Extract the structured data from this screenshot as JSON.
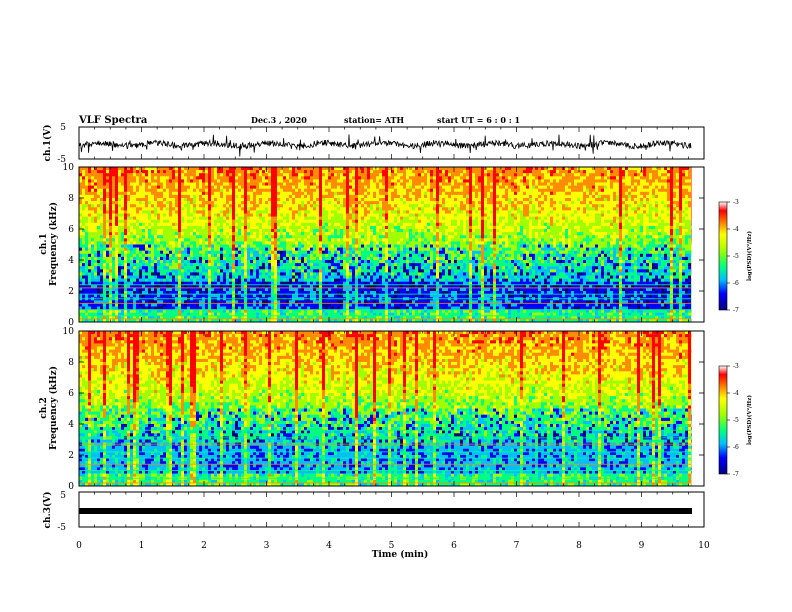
{
  "header": {
    "title": "VLF Spectra",
    "date": "Dec.3 , 2020",
    "station": "station= ATH",
    "start": "start UT = 6 : 0 : 1"
  },
  "chart_data": {
    "type": "heatmap",
    "x": {
      "label": "Time (min)",
      "range": [
        0,
        10
      ],
      "ticks": [
        "0",
        "1",
        "2",
        "3",
        "4",
        "5",
        "6",
        "7",
        "8",
        "9",
        "10"
      ]
    },
    "panels": [
      {
        "id": "ch1_waveform",
        "type": "line",
        "ylabel": "ch.1(V)",
        "ylim": [
          -5,
          5
        ],
        "yticks": [
          "5",
          "-5"
        ],
        "description_baseline_V": -1.5
      },
      {
        "id": "ch1_spectrogram",
        "type": "heatmap",
        "ylabel": "ch.1\nFrequency (kHz)",
        "ylim": [
          0,
          10
        ],
        "yticks": [
          "0",
          "2",
          "4",
          "6",
          "8",
          "10"
        ],
        "colorbar": {
          "label": "log(PSD)(V²/Hz)",
          "range": [
            -7,
            -3
          ],
          "ticks": [
            "-3",
            "-4",
            "-5",
            "-6",
            "-7"
          ]
        }
      },
      {
        "id": "ch2_spectrogram",
        "type": "heatmap",
        "ylabel": "ch.2\nFrequency (kHz)",
        "ylim": [
          0,
          10
        ],
        "yticks": [
          "0",
          "2",
          "4",
          "6",
          "8",
          "10"
        ],
        "colorbar": {
          "label": "log(PSD)(V²/Hz)",
          "range": [
            -7,
            -3
          ],
          "ticks": [
            "-3",
            "-4",
            "-5",
            "-6",
            "-7"
          ]
        }
      },
      {
        "id": "ch3_waveform",
        "type": "line",
        "ylabel": "ch.3(V)",
        "ylim": [
          -5,
          5
        ],
        "yticks": [
          "5",
          "-5"
        ],
        "description_baseline_V": -1.5
      }
    ],
    "data_end_min": 9.8
  },
  "colors": {
    "spectrum": [
      "#00007f",
      "#0000ff",
      "#00bfff",
      "#00ff80",
      "#a0ff00",
      "#ffff00",
      "#ff8c00",
      "#ff0000",
      "#ffffff"
    ]
  }
}
